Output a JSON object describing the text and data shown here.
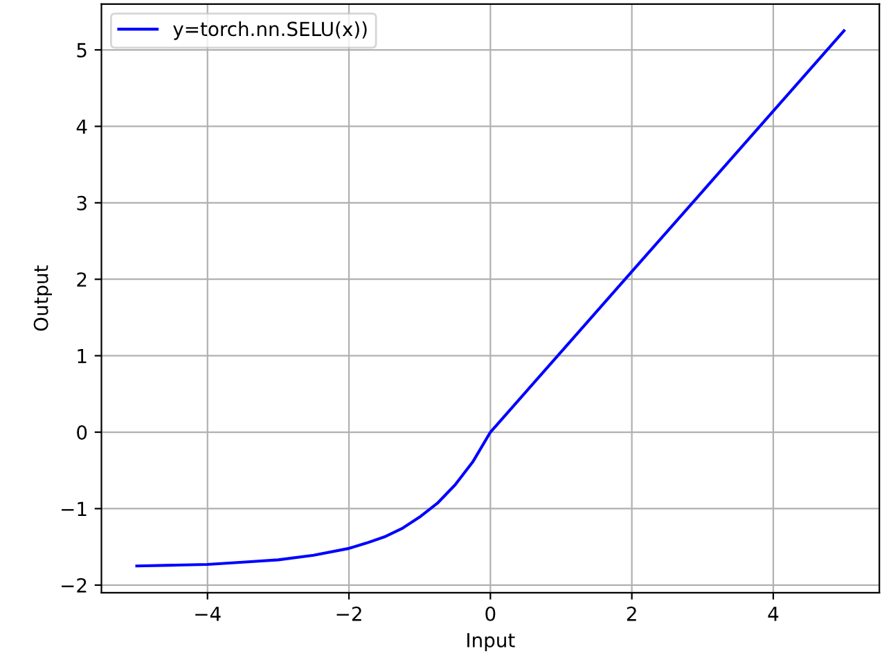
{
  "chart_data": {
    "type": "line",
    "xlabel": "Input",
    "ylabel": "Output",
    "series": [
      {
        "name": "y=torch.nn.SELU(x))",
        "color": "#0000ff",
        "x": [
          -5,
          -4.5,
          -4,
          -3.5,
          -3,
          -2.5,
          -2,
          -1.75,
          -1.5,
          -1.25,
          -1,
          -0.75,
          -0.5,
          -0.25,
          0,
          1,
          2,
          3,
          4,
          5
        ],
        "values": [
          -1.75,
          -1.74,
          -1.73,
          -1.7,
          -1.67,
          -1.61,
          -1.52,
          -1.45,
          -1.37,
          -1.26,
          -1.11,
          -0.93,
          -0.69,
          -0.39,
          0,
          1.05,
          2.1,
          3.15,
          4.2,
          5.25
        ]
      }
    ],
    "xlim": [
      -5.5,
      5.5
    ],
    "ylim": [
      -2.1,
      5.6
    ],
    "xticks": [
      {
        "value": -4,
        "label": "−4"
      },
      {
        "value": -2,
        "label": "−2"
      },
      0,
      2,
      4
    ],
    "yticks": [
      {
        "value": -2,
        "label": "−2"
      },
      {
        "value": -1,
        "label": "−1"
      },
      0,
      1,
      2,
      3,
      4,
      5
    ],
    "grid": true,
    "legend": "top left",
    "marker": "none",
    "line_style": "solid"
  }
}
